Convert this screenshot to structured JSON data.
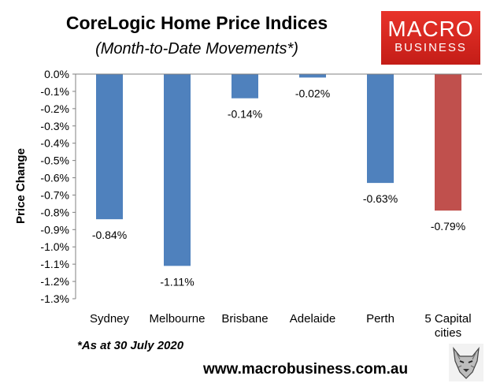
{
  "title": "CoreLogic Home Price Indices",
  "subtitle": "(Month-to-Date Movements*)",
  "logo": {
    "line1": "MACRO",
    "line2": "BUSINESS"
  },
  "footnote": "*As at 30 July 2020",
  "website": "www.macrobusiness.com.au",
  "chart_data": {
    "type": "bar",
    "ylabel": "Price Change",
    "ylim": [
      -1.3,
      0.0
    ],
    "ytick_step": 0.1,
    "categories": [
      "Sydney",
      "Melbourne",
      "Brisbane",
      "Adelaide",
      "Perth",
      "5 Capital cities"
    ],
    "category_labels": [
      [
        "Sydney"
      ],
      [
        "Melbourne"
      ],
      [
        "Brisbane"
      ],
      [
        "Adelaide"
      ],
      [
        "Perth"
      ],
      [
        "5 Capital",
        "cities"
      ]
    ],
    "values": [
      -0.84,
      -1.11,
      -0.14,
      -0.02,
      -0.63,
      -0.79
    ],
    "data_labels": [
      "-0.84%",
      "-1.11%",
      "-0.14%",
      "-0.02%",
      "-0.63%",
      "-0.79%"
    ],
    "colors": [
      "#4f81bd",
      "#4f81bd",
      "#4f81bd",
      "#4f81bd",
      "#4f81bd",
      "#c0504d"
    ],
    "grid": false,
    "legend": "none"
  }
}
